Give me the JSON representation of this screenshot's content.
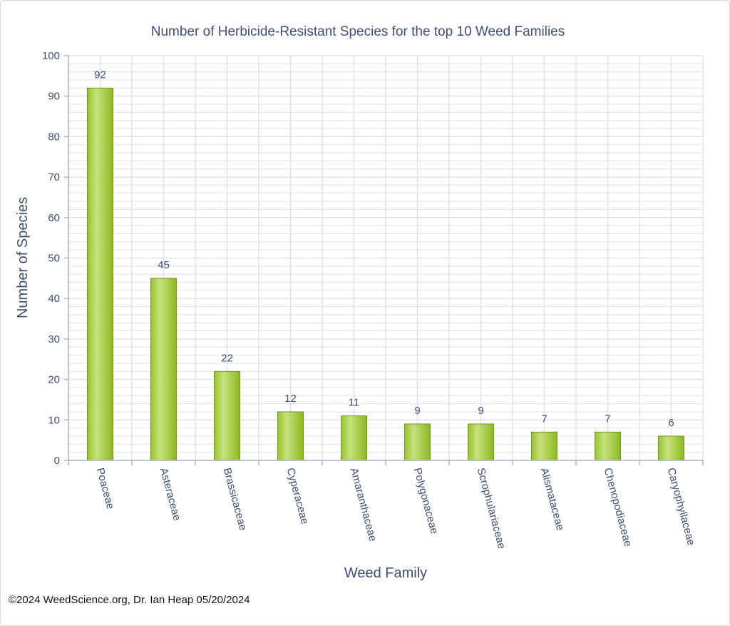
{
  "chart_data": {
    "type": "bar",
    "title": "Number of Herbicide-Resistant Species for the top 10 Weed Families",
    "xlabel": "Weed Family",
    "ylabel": "Number of Species",
    "categories": [
      "Poaceae",
      "Asteraceae",
      "Brassicaceae",
      "Cyperaceae",
      "Amaranthaceae",
      "Polygonaceae",
      "Scrophulariaceae",
      "Alismataceae",
      "Chenopodiaceae",
      "Caryophyllaceae"
    ],
    "values": [
      92,
      45,
      22,
      12,
      11,
      9,
      9,
      7,
      7,
      6
    ],
    "ylim": [
      0,
      100
    ],
    "yticks": [
      0,
      10,
      20,
      30,
      40,
      50,
      60,
      70,
      80,
      90,
      100
    ],
    "grid": true,
    "data_labels": true,
    "colors": {
      "bar": "#9ac42c",
      "bar_light": "#c4e07a",
      "bar_edge": "#6f9a1a",
      "text": "#3d4f73",
      "grid": "#dde3ec"
    }
  },
  "footer": "©2024 WeedScience.org, Dr. Ian Heap 05/20/2024"
}
